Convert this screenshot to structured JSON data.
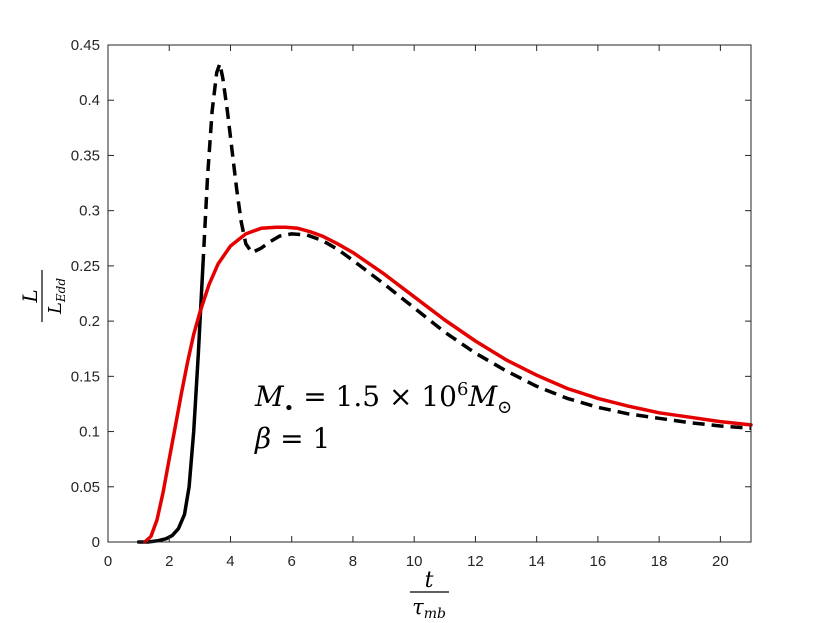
{
  "chart_data": {
    "type": "line",
    "xlabel": {
      "numerator": "t",
      "denominator_base": "τ",
      "denominator_sub": "mb"
    },
    "ylabel": {
      "numerator": "L",
      "denominator_base": "L",
      "denominator_sub": "Edd"
    },
    "xlim": [
      0,
      21
    ],
    "ylim": [
      0,
      0.45
    ],
    "xticks": [
      0,
      2,
      4,
      6,
      8,
      10,
      12,
      14,
      16,
      18,
      20
    ],
    "yticks": [
      0,
      0.05,
      0.1,
      0.15,
      0.2,
      0.25,
      0.3,
      0.35,
      0.4,
      0.45
    ],
    "xtick_labels": [
      "0",
      "2",
      "4",
      "6",
      "8",
      "10",
      "12",
      "14",
      "16",
      "18",
      "20"
    ],
    "ytick_labels": [
      "0",
      "0.05",
      "0.1",
      "0.15",
      "0.2",
      "0.25",
      "0.3",
      "0.35",
      "0.4",
      "0.45"
    ],
    "grid": false,
    "annotation": {
      "line1": {
        "lhs_base": "M",
        "lhs_sub": "•",
        "eq": " = 1.5 × 10",
        "exp": "6",
        "rhs_base": "M",
        "rhs_sub": "⊙"
      },
      "line2": {
        "lhs": "β",
        "eq": " = 1"
      }
    },
    "series": [
      {
        "color": "#000000",
        "style": "solid-then-dashed",
        "x": [
          1.0,
          1.3,
          1.6,
          1.9,
          2.1,
          2.3,
          2.5,
          2.65,
          2.8,
          2.95,
          3.1,
          3.25,
          3.4,
          3.55,
          3.65,
          3.75,
          3.9,
          4.05,
          4.2,
          4.35,
          4.5,
          4.7,
          5.0,
          5.3,
          5.6,
          6.0,
          6.5,
          7.0,
          7.5,
          8.0,
          9.0,
          10.0,
          11.0,
          12.0,
          13.0,
          14.0,
          15.0,
          16.0,
          17.0,
          18.0,
          19.0,
          20.0,
          21.0
        ],
        "y": [
          0,
          0,
          0.001,
          0.003,
          0.006,
          0.012,
          0.025,
          0.05,
          0.1,
          0.17,
          0.25,
          0.33,
          0.39,
          0.425,
          0.433,
          0.42,
          0.39,
          0.355,
          0.32,
          0.29,
          0.27,
          0.262,
          0.266,
          0.272,
          0.277,
          0.279,
          0.278,
          0.273,
          0.265,
          0.255,
          0.234,
          0.212,
          0.19,
          0.171,
          0.155,
          0.141,
          0.13,
          0.122,
          0.116,
          0.112,
          0.108,
          0.105,
          0.103
        ],
        "solid_until_x": 3.1
      },
      {
        "color": "#e50000",
        "style": "solid",
        "x": [
          1.2,
          1.4,
          1.6,
          1.8,
          2.0,
          2.2,
          2.4,
          2.6,
          2.8,
          3.0,
          3.3,
          3.6,
          4.0,
          4.5,
          5.0,
          5.5,
          5.8,
          6.2,
          6.6,
          7.0,
          7.5,
          8.0,
          9.0,
          10.0,
          11.0,
          12.0,
          13.0,
          14.0,
          15.0,
          16.0,
          17.0,
          18.0,
          19.0,
          20.0,
          21.0
        ],
        "y": [
          0,
          0.005,
          0.02,
          0.045,
          0.075,
          0.105,
          0.135,
          0.163,
          0.188,
          0.208,
          0.233,
          0.252,
          0.268,
          0.279,
          0.284,
          0.285,
          0.285,
          0.284,
          0.281,
          0.277,
          0.27,
          0.262,
          0.243,
          0.222,
          0.201,
          0.182,
          0.165,
          0.151,
          0.139,
          0.13,
          0.123,
          0.117,
          0.113,
          0.109,
          0.106
        ]
      }
    ]
  }
}
